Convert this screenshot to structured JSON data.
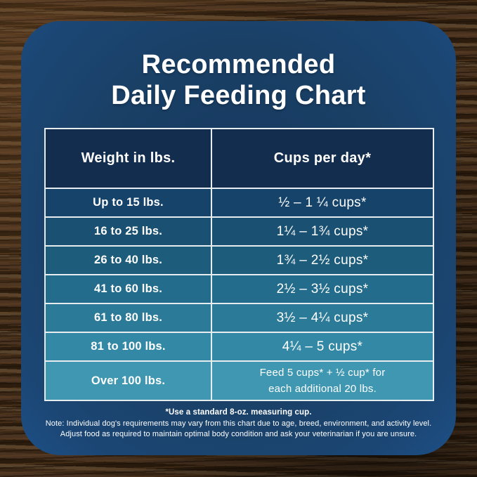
{
  "title": {
    "line1": "Recommended",
    "line2": "Daily Feeding Chart"
  },
  "chart_data": {
    "type": "table",
    "title": "Recommended Daily Feeding Chart",
    "columns": [
      "Weight in lbs.",
      "Cups per day*"
    ],
    "rows": [
      {
        "weight": "Up to 15 lbs.",
        "cups": "½ – 1 ¼ cups*",
        "bg": "#15436a"
      },
      {
        "weight": "16 to 25 lbs.",
        "cups": "1¼ – 1¾ cups*",
        "bg": "#1a5071"
      },
      {
        "weight": "26 to 40 lbs.",
        "cups": "1¾ – 2½ cups*",
        "bg": "#1e5c7c"
      },
      {
        "weight": "41 to 60 lbs.",
        "cups": "2½ – 3½ cups*",
        "bg": "#246c8b"
      },
      {
        "weight": "61 to 80 lbs.",
        "cups": "3½ – 4¼ cups*",
        "bg": "#2b7a97"
      },
      {
        "weight": "81 to 100 lbs.",
        "cups": "4¼ – 5 cups*",
        "bg": "#3389a5"
      },
      {
        "weight": "Over 100 lbs.",
        "cups": "Feed 5 cups* + ½ cup* for each additional 20 lbs.",
        "cups_lines": [
          "Feed 5 cups*  + ½ cup* for",
          "each  additional 20 lbs."
        ],
        "bg": "#3f97b2"
      }
    ],
    "header_bg": "#122d4d",
    "footnote": "*Use a standard 8-oz. measuring cup."
  },
  "footnotes": {
    "measuring_cup": "*Use a standard 8-oz. measuring cup.",
    "note_line1": "Note: Individual dog's requirements may vary from this chart due to age, breed, environment, and activity level.",
    "note_line2": "Adjust food as required to maintain optimal body condition and ask your veterinarian if you are unsure."
  },
  "colors": {
    "card_blue": "#1a4066",
    "card_edge_blue": "#1d4f86",
    "header_navy": "#122d4d",
    "border_white": "#e7edef",
    "wood_brown": "#3a2715",
    "text_white": "#ffffff"
  }
}
